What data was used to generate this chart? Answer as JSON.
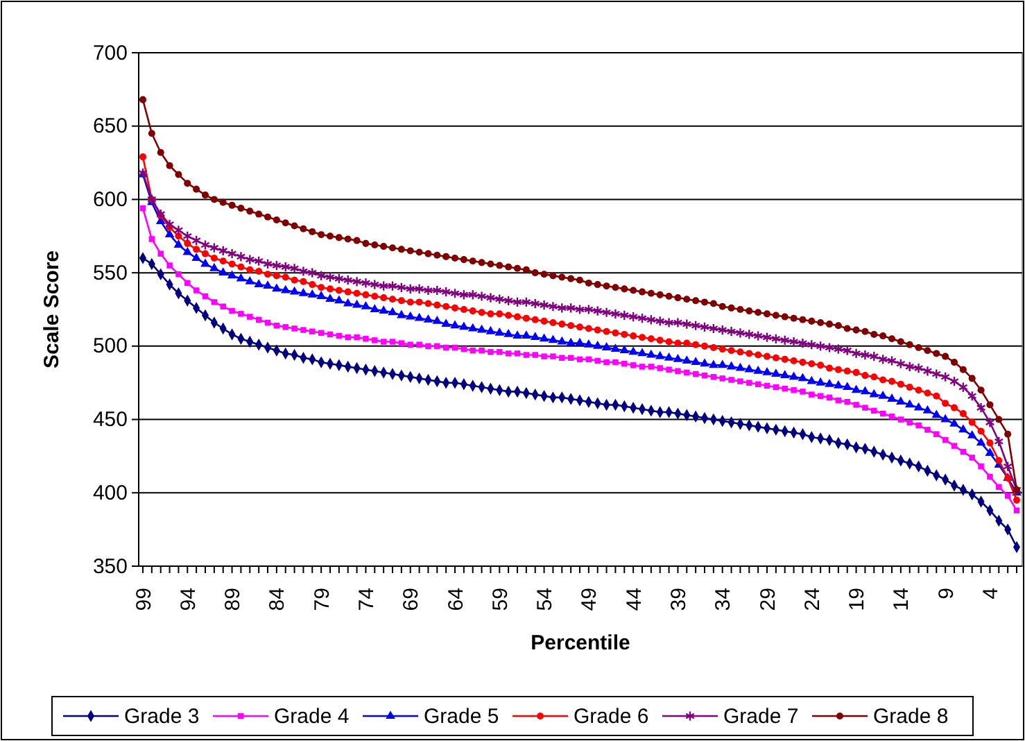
{
  "chart_data": {
    "type": "line",
    "xlabel": "Percentile",
    "ylabel": "Scale Score",
    "ylim": [
      350,
      700
    ],
    "yticks": [
      350,
      400,
      450,
      500,
      550,
      600,
      650,
      700
    ],
    "grid": "y",
    "legend": "bottom",
    "categories": [
      "99",
      null,
      null,
      null,
      null,
      "94",
      null,
      null,
      null,
      null,
      "89",
      null,
      null,
      null,
      null,
      "84",
      null,
      null,
      null,
      null,
      "79",
      null,
      null,
      null,
      null,
      "74",
      null,
      null,
      null,
      null,
      "69",
      null,
      null,
      null,
      null,
      "64",
      null,
      null,
      null,
      null,
      "59",
      null,
      null,
      null,
      null,
      "54",
      null,
      null,
      null,
      null,
      "49",
      null,
      null,
      null,
      null,
      "44",
      null,
      null,
      null,
      null,
      "39",
      null,
      null,
      null,
      null,
      "34",
      null,
      null,
      null,
      null,
      "29",
      null,
      null,
      null,
      null,
      "24",
      null,
      null,
      null,
      null,
      "19",
      null,
      null,
      null,
      null,
      "14",
      null,
      null,
      null,
      null,
      "9",
      null,
      null,
      null,
      null,
      "4",
      null,
      null,
      null
    ],
    "series": [
      {
        "name": "Grade 3",
        "color": "#000080",
        "marker": "diamond",
        "values": [
          560,
          556,
          549,
          542,
          536,
          531,
          526,
          521,
          516,
          512,
          508,
          505,
          503,
          501,
          499,
          497,
          495,
          494,
          492,
          491,
          489,
          488,
          487,
          486,
          485,
          484,
          483,
          482,
          481,
          480,
          479,
          478,
          477,
          476,
          475,
          475,
          474,
          473,
          472,
          471,
          470,
          469,
          469,
          468,
          467,
          466,
          465,
          465,
          464,
          463,
          462,
          461,
          460,
          460,
          459,
          458,
          457,
          456,
          455,
          455,
          454,
          453,
          452,
          451,
          450,
          449,
          448,
          447,
          446,
          445,
          444,
          443,
          442,
          441,
          440,
          438,
          437,
          436,
          434,
          433,
          431,
          430,
          428,
          426,
          424,
          422,
          420,
          418,
          415,
          412,
          409,
          405,
          402,
          399,
          394,
          388,
          381,
          375,
          363
        ]
      },
      {
        "name": "Grade 4",
        "color": "#ff00ff",
        "marker": "square",
        "values": [
          594,
          573,
          563,
          555,
          549,
          543,
          538,
          534,
          530,
          527,
          524,
          522,
          520,
          518,
          516,
          514,
          513,
          512,
          511,
          510,
          509,
          508,
          507,
          506,
          506,
          505,
          504,
          503,
          503,
          502,
          501,
          501,
          500,
          500,
          499,
          499,
          498,
          497,
          497,
          496,
          496,
          495,
          495,
          494,
          494,
          493,
          493,
          492,
          492,
          491,
          491,
          490,
          489,
          489,
          488,
          487,
          486,
          486,
          485,
          484,
          483,
          482,
          481,
          480,
          479,
          478,
          477,
          476,
          475,
          474,
          473,
          472,
          471,
          470,
          469,
          467,
          466,
          465,
          463,
          462,
          460,
          458,
          456,
          454,
          452,
          450,
          448,
          446,
          443,
          440,
          436,
          432,
          428,
          424,
          418,
          411,
          404,
          398,
          388
        ]
      },
      {
        "name": "Grade 5",
        "color": "#0000ff",
        "marker": "triangle",
        "values": [
          617,
          598,
          585,
          576,
          569,
          564,
          560,
          556,
          553,
          550,
          548,
          546,
          544,
          542,
          541,
          539,
          538,
          537,
          536,
          535,
          534,
          532,
          531,
          529,
          528,
          527,
          525,
          524,
          523,
          521,
          520,
          519,
          518,
          517,
          515,
          514,
          513,
          512,
          511,
          510,
          509,
          508,
          507,
          507,
          506,
          505,
          504,
          503,
          502,
          502,
          501,
          500,
          499,
          498,
          497,
          496,
          495,
          494,
          493,
          492,
          491,
          490,
          489,
          488,
          487,
          487,
          486,
          485,
          484,
          483,
          482,
          481,
          480,
          479,
          478,
          476,
          475,
          474,
          473,
          472,
          470,
          469,
          467,
          466,
          464,
          462,
          460,
          458,
          456,
          453,
          450,
          447,
          443,
          439,
          434,
          427,
          419,
          410,
          400
        ]
      },
      {
        "name": "Grade 6",
        "color": "#ff0000",
        "marker": "circle",
        "values": [
          629,
          600,
          589,
          581,
          575,
          570,
          566,
          563,
          560,
          558,
          556,
          554,
          552,
          551,
          549,
          548,
          547,
          545,
          544,
          542,
          540,
          539,
          538,
          537,
          536,
          535,
          534,
          533,
          532,
          531,
          530,
          530,
          529,
          528,
          527,
          526,
          525,
          524,
          523,
          522,
          522,
          521,
          520,
          519,
          518,
          517,
          516,
          515,
          514,
          513,
          512,
          511,
          510,
          509,
          508,
          507,
          506,
          505,
          504,
          503,
          502,
          502,
          501,
          500,
          499,
          498,
          497,
          496,
          495,
          494,
          493,
          492,
          491,
          490,
          489,
          488,
          487,
          485,
          484,
          483,
          482,
          480,
          479,
          477,
          476,
          474,
          472,
          470,
          468,
          466,
          461,
          458,
          454,
          448,
          442,
          434,
          422,
          410,
          395
        ]
      },
      {
        "name": "Grade 7",
        "color": "#800080",
        "marker": "cross",
        "values": [
          618,
          600,
          590,
          583,
          579,
          575,
          572,
          569,
          567,
          565,
          563,
          561,
          559,
          558,
          556,
          555,
          554,
          553,
          551,
          550,
          548,
          547,
          546,
          545,
          544,
          543,
          542,
          541,
          541,
          540,
          539,
          539,
          538,
          538,
          537,
          536,
          535,
          535,
          534,
          533,
          532,
          531,
          530,
          530,
          529,
          528,
          527,
          526,
          526,
          525,
          525,
          524,
          523,
          522,
          521,
          520,
          519,
          518,
          517,
          516,
          516,
          515,
          514,
          513,
          512,
          511,
          510,
          509,
          508,
          507,
          506,
          505,
          504,
          503,
          502,
          501,
          500,
          499,
          498,
          497,
          495,
          494,
          493,
          491,
          490,
          488,
          486,
          485,
          483,
          481,
          479,
          476,
          472,
          466,
          458,
          448,
          435,
          418,
          402
        ]
      },
      {
        "name": "Grade 8",
        "color": "#800000",
        "marker": "circle",
        "values": [
          668,
          645,
          632,
          623,
          617,
          611,
          607,
          603,
          600,
          598,
          596,
          594,
          592,
          590,
          588,
          586,
          584,
          582,
          580,
          578,
          576,
          575,
          574,
          573,
          572,
          570,
          569,
          568,
          567,
          566,
          565,
          564,
          563,
          562,
          561,
          560,
          559,
          558,
          557,
          556,
          555,
          554,
          553,
          552,
          550,
          549,
          548,
          547,
          546,
          545,
          543,
          542,
          541,
          540,
          539,
          538,
          537,
          536,
          535,
          534,
          533,
          532,
          531,
          530,
          529,
          527,
          526,
          525,
          524,
          523,
          522,
          521,
          520,
          519,
          518,
          517,
          516,
          515,
          514,
          512,
          511,
          510,
          508,
          507,
          505,
          503,
          501,
          499,
          497,
          495,
          493,
          489,
          484,
          478,
          470,
          460,
          450,
          440,
          402
        ]
      }
    ]
  }
}
